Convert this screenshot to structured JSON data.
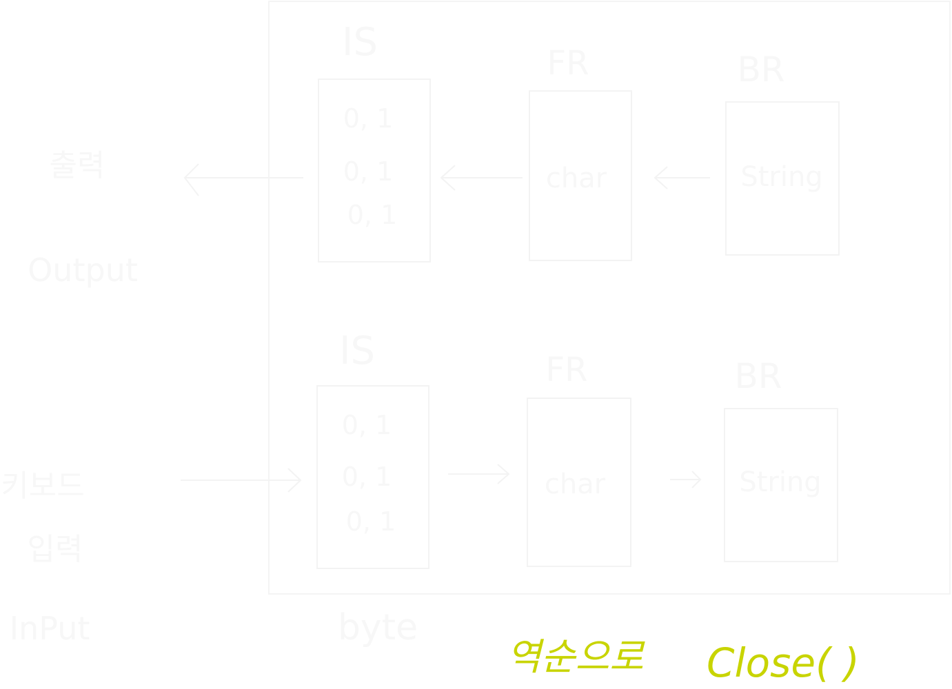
{
  "colors": {
    "ghost_text": "#f7f7f7",
    "ghost_line": "#f3f3f3",
    "annotation": "#c8d400",
    "background": "#ffffff"
  },
  "left_labels": {
    "output_korean": "출력",
    "output_english": "Output",
    "input_korean_1": "키보드",
    "input_korean_2": "입력",
    "input_english": "InPut"
  },
  "top_row": {
    "is_label": "IS",
    "is_bits": [
      "0, 1",
      "0, 1",
      "0, 1"
    ],
    "fr_label": "FR",
    "fr_content": "char",
    "br_label": "BR",
    "br_content": "String"
  },
  "bottom_row": {
    "is_label": "IS",
    "is_bits": [
      "0, 1",
      "0, 1",
      "0, 1"
    ],
    "fr_label": "FR",
    "fr_content": "char",
    "br_label": "BR",
    "br_content": "String"
  },
  "byte_label": "byte",
  "annotation": {
    "korean": "역순으로",
    "method": "Close( )"
  }
}
